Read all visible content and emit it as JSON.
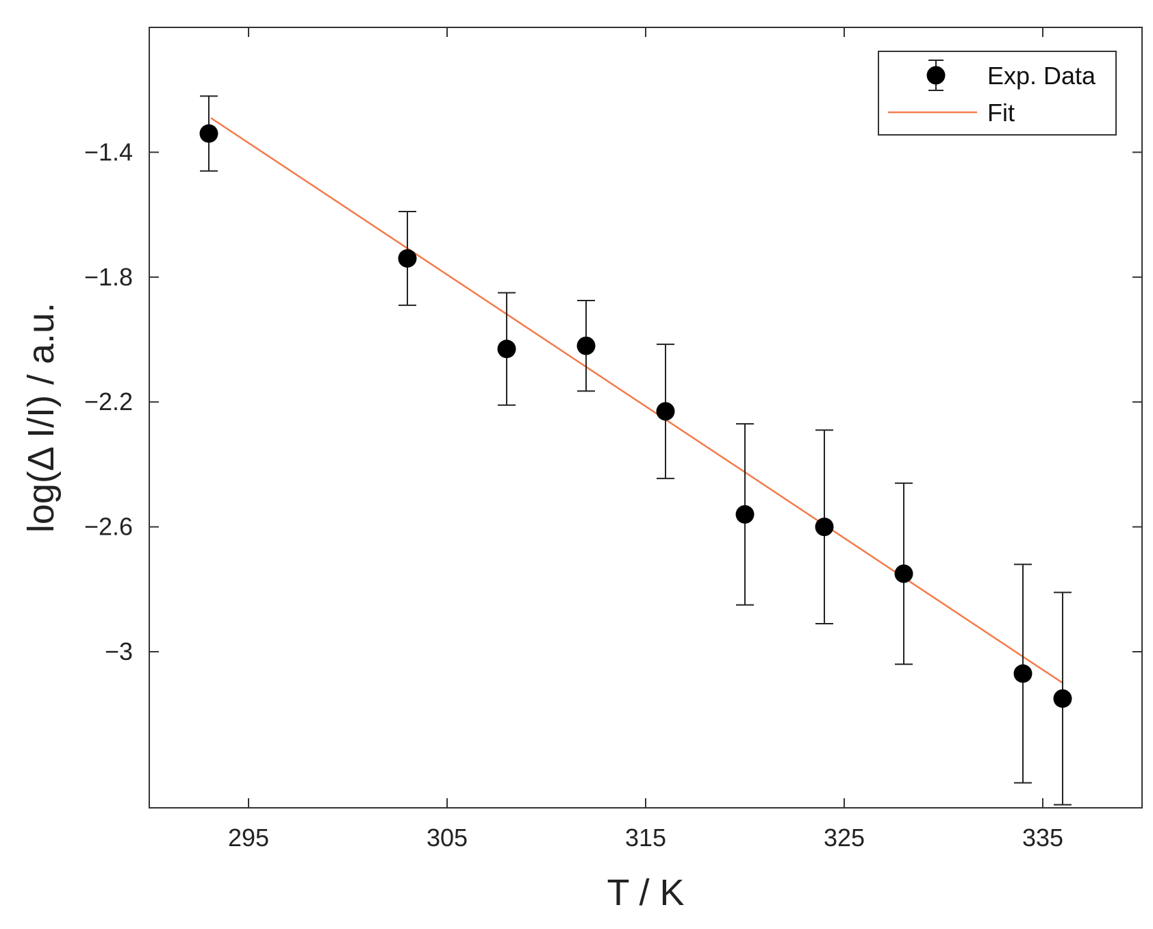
{
  "chart_data": {
    "type": "scatter",
    "xlabel": "T / K",
    "ylabel": "log(Δ I/I) / a.u.",
    "xlim": [
      290,
      340
    ],
    "ylim": [
      -3.5,
      -1.0
    ],
    "x_ticks": [
      295,
      305,
      315,
      325,
      335
    ],
    "x_tick_labels": [
      "295",
      "305",
      "315",
      "325",
      "335"
    ],
    "y_ticks": [
      -1.4,
      -1.8,
      -2.2,
      -2.6,
      -3.0
    ],
    "y_tick_labels": [
      "−1.4",
      "−1.8",
      "−2.2",
      "−2.6",
      "−3"
    ],
    "grid": false,
    "legend_position": "top-right",
    "series": [
      {
        "name": "Exp. Data",
        "kind": "errorbar",
        "color": "#000000",
        "points": [
          {
            "x": 293,
            "y": -1.34,
            "err_low": 0.12,
            "err_high": 0.12
          },
          {
            "x": 303,
            "y": -1.74,
            "err_low": 0.15,
            "err_high": 0.15
          },
          {
            "x": 308,
            "y": -2.03,
            "err_low": 0.18,
            "err_high": 0.18
          },
          {
            "x": 312,
            "y": -2.02,
            "err_low": 0.145,
            "err_high": 0.145
          },
          {
            "x": 316,
            "y": -2.23,
            "err_low": 0.215,
            "err_high": 0.215
          },
          {
            "x": 320,
            "y": -2.56,
            "err_low": 0.29,
            "err_high": 0.29
          },
          {
            "x": 324,
            "y": -2.6,
            "err_low": 0.31,
            "err_high": 0.31
          },
          {
            "x": 328,
            "y": -2.75,
            "err_low": 0.29,
            "err_high": 0.29
          },
          {
            "x": 334,
            "y": -3.07,
            "err_low": 0.35,
            "err_high": 0.35
          },
          {
            "x": 336,
            "y": -3.15,
            "err_low": 0.34,
            "err_high": 0.34
          }
        ]
      },
      {
        "name": "Fit",
        "kind": "line",
        "color": "#f47a4a",
        "x": [
          293.1,
          336
        ],
        "y": [
          -1.29,
          -3.1
        ]
      }
    ]
  }
}
